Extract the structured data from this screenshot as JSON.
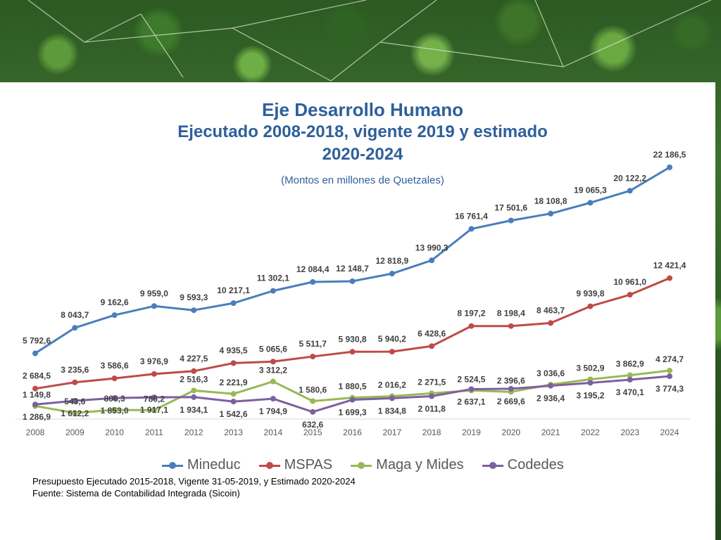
{
  "chart_data": {
    "type": "line",
    "title": "Eje Desarrollo Humano",
    "subtitle_lines": [
      "Ejecutado 2008-2018, vigente 2019 y estimado",
      "2020-2024"
    ],
    "note": "(Montos en millones de Quetzales)",
    "x": [
      "2008",
      "2009",
      "2010",
      "2011",
      "2012",
      "2013",
      "2014",
      "2015",
      "2016",
      "2017",
      "2018",
      "2019",
      "2020",
      "2021",
      "2022",
      "2023",
      "2024"
    ],
    "ylim": [
      0,
      22186.5
    ],
    "grid": false,
    "legend_position": "bottom",
    "series": [
      {
        "name": "Mineduc",
        "color": "#4a7ebb",
        "values": [
          5792.6,
          8043.7,
          9162.6,
          9959.0,
          9593.3,
          10217.1,
          11302.1,
          12084.4,
          12148.7,
          12818.9,
          13990.3,
          16761.4,
          17501.6,
          18108.8,
          19065.3,
          20122.2,
          22186.5
        ],
        "labels": [
          "5 792,6",
          "8 043,7",
          "9 162,6",
          "9 959,0",
          "9 593,3",
          "10 217,1",
          "11 302,1",
          "12 084,4",
          "12 148,7",
          "12 818,9",
          "13 990,3",
          "16 761,4",
          "17 501,6",
          "18 108,8",
          "19 065,3",
          "20 122,2",
          "22 186,5"
        ]
      },
      {
        "name": "MSPAS",
        "color": "#be4b48",
        "values": [
          2684.5,
          3235.6,
          3586.6,
          3976.9,
          4227.5,
          4935.5,
          5065.6,
          5511.7,
          5930.8,
          5940.2,
          6428.6,
          8197.2,
          8198.4,
          8463.7,
          9939.8,
          10961.0,
          12421.4
        ],
        "labels": [
          "2 684,5",
          "3 235,6",
          "3 586,6",
          "3 976,9",
          "4 227,5",
          "4 935,5",
          "5 065,6",
          "5 511,7",
          "5 930,8",
          "5 940,2",
          "6 428,6",
          "8 197,2",
          "8 198,4",
          "8 463,7",
          "9 939,8",
          "10 961,0",
          "12 421,4"
        ]
      },
      {
        "name": "Maga y Mides",
        "color": "#98b954",
        "values": [
          1149.8,
          543.6,
          806.3,
          786.2,
          2516.3,
          2221.9,
          3312.2,
          1580.6,
          1880.5,
          2016.2,
          2271.5,
          2524.5,
          2396.6,
          3036.6,
          3502.9,
          3862.9,
          4274.7
        ],
        "labels": [
          "1 149,8",
          "543,6",
          "806,3",
          "786,2",
          "2 516,3",
          "2 221,9",
          "3 312,2",
          "1 580,6",
          "1 880,5",
          "2 016,2",
          "2 271,5",
          "2 524,5",
          "2 396,6",
          "3 036,6",
          "3 502,9",
          "3 862,9",
          "4 274,7"
        ]
      },
      {
        "name": "Codedes",
        "color": "#7d60a0",
        "values": [
          1286.9,
          1612.2,
          1853.0,
          1917.1,
          1934.1,
          1542.6,
          1794.9,
          632.6,
          1699.3,
          1834.8,
          2011.8,
          2637.1,
          2669.6,
          2936.4,
          3195.2,
          3470.1,
          3774.3
        ],
        "labels": [
          "1 286,9",
          "1 612,2",
          "1 853,0",
          "1 917,1",
          "1 934,1",
          "1 542,6",
          "1 794,9",
          "632,6",
          "1 699,3",
          "1 834,8",
          "2 011,8",
          "2 637,1",
          "2 669,6",
          "2 936,4",
          "3 195,2",
          "3 470,1",
          "3 774,3"
        ]
      }
    ]
  },
  "footer": {
    "line1": "Presupuesto Ejecutado 2015-2018, Vigente 31-05-2019, y Estimado 2020-2024",
    "line2": "Fuente: Sistema de Contabilidad Integrada (Sicoin)"
  }
}
